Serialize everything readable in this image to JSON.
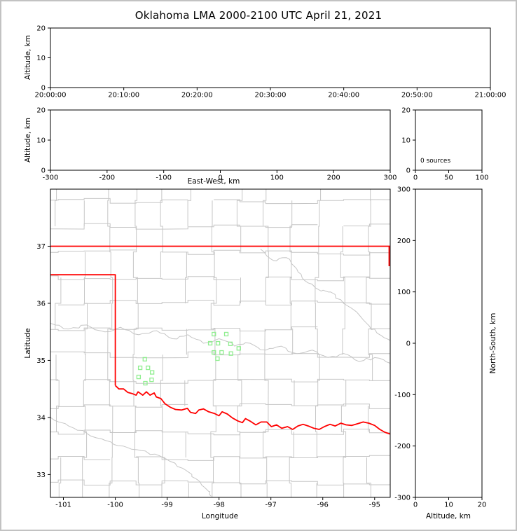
{
  "title": "Oklahoma LMA 2000-2100 UTC April 21, 2021",
  "frame_color": "#c2c2c2",
  "chart_data": {
    "type": "scatter",
    "title": "Oklahoma LMA 2000-2100 UTC April 21, 2021",
    "panels": {
      "time_height": {
        "ylabel": "Altitude, km",
        "xticks": [
          "20:00:00",
          "20:10:00",
          "20:20:00",
          "20:30:00",
          "20:40:00",
          "20:50:00",
          "21:00:00"
        ],
        "ylim": [
          0,
          20
        ],
        "yticks": [
          0,
          10,
          20
        ],
        "points": []
      },
      "ew_height": {
        "xlabel": "East-West, km",
        "ylabel": "Altitude, km",
        "xlim": [
          -300,
          300
        ],
        "xticks": [
          -300,
          -200,
          -100,
          0,
          100,
          200,
          300
        ],
        "ylim": [
          0,
          20
        ],
        "yticks": [
          0,
          10,
          20
        ],
        "points": []
      },
      "alt_histogram": {
        "xlim": [
          0,
          100
        ],
        "xticks": [
          0,
          50,
          100
        ],
        "ylim": [
          0,
          20
        ],
        "yticks": [
          0,
          10,
          20
        ],
        "annotation": "0 sources",
        "points": []
      },
      "ns_height": {
        "xlabel": "Altitude, km",
        "ylabel": "North-South, km",
        "xlim": [
          0,
          20
        ],
        "xticks": [
          0,
          10,
          20
        ],
        "ylim": [
          -300,
          300
        ],
        "yticks": [
          300,
          200,
          100,
          0,
          -100,
          -200,
          -300
        ],
        "points": []
      },
      "map": {
        "xlabel": "Longitude",
        "ylabel": "Latitude",
        "xlim": [
          -101.25,
          -94.7
        ],
        "xticks": [
          -101,
          -100,
          -99,
          -98,
          -97,
          -96,
          -95
        ],
        "ylim": [
          32.6,
          38.0
        ],
        "yticks": [
          37,
          36,
          35,
          34,
          33
        ],
        "county_color": "#c6c6c6",
        "state_color": "#ff0000",
        "station_color": "#90ee90",
        "stations": [
          [
            -99.43,
            35.02
          ],
          [
            -99.52,
            34.87
          ],
          [
            -99.37,
            34.87
          ],
          [
            -99.29,
            34.79
          ],
          [
            -99.55,
            34.71
          ],
          [
            -99.42,
            34.6
          ],
          [
            -99.3,
            34.66
          ],
          [
            -98.1,
            35.46
          ],
          [
            -97.86,
            35.46
          ],
          [
            -98.17,
            35.3
          ],
          [
            -98.02,
            35.3
          ],
          [
            -97.78,
            35.29
          ],
          [
            -97.62,
            35.21
          ],
          [
            -98.1,
            35.14
          ],
          [
            -97.95,
            35.14
          ],
          [
            -97.77,
            35.12
          ],
          [
            -98.03,
            35.03
          ]
        ],
        "state_lines": [
          [
            [
              -101.25,
              37.0
            ],
            [
              -94.7,
              37.0
            ]
          ],
          [
            [
              -94.72,
              37.0
            ],
            [
              -94.72,
              36.65
            ]
          ],
          [
            [
              -101.25,
              36.5
            ],
            [
              -100.0,
              36.5
            ],
            [
              -100.0,
              34.56
            ]
          ],
          [
            [
              -100.0,
              34.56
            ],
            [
              -99.93,
              34.5
            ],
            [
              -99.84,
              34.5
            ],
            [
              -99.76,
              34.44
            ],
            [
              -99.68,
              34.42
            ],
            [
              -99.6,
              34.39
            ],
            [
              -99.56,
              34.45
            ],
            [
              -99.47,
              34.39
            ],
            [
              -99.4,
              34.45
            ],
            [
              -99.33,
              34.39
            ],
            [
              -99.25,
              34.43
            ],
            [
              -99.21,
              34.36
            ],
            [
              -99.12,
              34.33
            ],
            [
              -99.04,
              34.24
            ],
            [
              -98.94,
              34.18
            ],
            [
              -98.84,
              34.14
            ],
            [
              -98.72,
              34.13
            ],
            [
              -98.61,
              34.16
            ],
            [
              -98.55,
              34.09
            ],
            [
              -98.45,
              34.07
            ],
            [
              -98.39,
              34.13
            ],
            [
              -98.3,
              34.15
            ],
            [
              -98.2,
              34.1
            ],
            [
              -98.09,
              34.07
            ],
            [
              -98.0,
              34.03
            ],
            [
              -97.94,
              34.1
            ],
            [
              -97.84,
              34.06
            ],
            [
              -97.74,
              33.99
            ],
            [
              -97.64,
              33.94
            ],
            [
              -97.55,
              33.91
            ],
            [
              -97.49,
              33.98
            ],
            [
              -97.39,
              33.93
            ],
            [
              -97.29,
              33.87
            ],
            [
              -97.19,
              33.92
            ],
            [
              -97.08,
              33.92
            ],
            [
              -96.99,
              33.84
            ],
            [
              -96.89,
              33.87
            ],
            [
              -96.79,
              33.81
            ],
            [
              -96.68,
              33.84
            ],
            [
              -96.58,
              33.79
            ],
            [
              -96.48,
              33.85
            ],
            [
              -96.38,
              33.88
            ],
            [
              -96.28,
              33.85
            ],
            [
              -96.17,
              33.81
            ],
            [
              -96.07,
              33.79
            ],
            [
              -95.97,
              33.84
            ],
            [
              -95.86,
              33.88
            ],
            [
              -95.76,
              33.85
            ],
            [
              -95.65,
              33.9
            ],
            [
              -95.55,
              33.87
            ],
            [
              -95.44,
              33.86
            ],
            [
              -95.33,
              33.89
            ],
            [
              -95.22,
              33.92
            ],
            [
              -95.11,
              33.9
            ],
            [
              -95.0,
              33.86
            ],
            [
              -94.9,
              33.79
            ],
            [
              -94.8,
              33.74
            ],
            [
              -94.7,
              33.71
            ]
          ]
        ],
        "rivers": [
          [
            [
              -101.25,
              35.65
            ],
            [
              -100.9,
              35.55
            ],
            [
              -100.55,
              35.62
            ],
            [
              -100.2,
              35.5
            ],
            [
              -99.9,
              35.58
            ],
            [
              -99.55,
              35.45
            ],
            [
              -99.2,
              35.52
            ],
            [
              -98.9,
              35.38
            ],
            [
              -98.6,
              35.45
            ],
            [
              -98.3,
              35.3
            ],
            [
              -98.0,
              35.38
            ],
            [
              -97.7,
              35.25
            ],
            [
              -97.4,
              35.3
            ],
            [
              -97.1,
              35.18
            ],
            [
              -96.8,
              35.25
            ],
            [
              -96.5,
              35.12
            ],
            [
              -96.2,
              35.18
            ],
            [
              -95.9,
              35.05
            ],
            [
              -95.6,
              35.12
            ],
            [
              -95.3,
              34.98
            ],
            [
              -95.0,
              35.05
            ],
            [
              -94.7,
              34.95
            ]
          ],
          [
            [
              -97.2,
              36.95
            ],
            [
              -96.95,
              36.75
            ],
            [
              -96.7,
              36.8
            ],
            [
              -96.5,
              36.6
            ],
            [
              -96.35,
              36.4
            ],
            [
              -96.1,
              36.25
            ],
            [
              -95.85,
              36.2
            ],
            [
              -95.6,
              36.0
            ],
            [
              -95.35,
              35.85
            ],
            [
              -95.1,
              35.6
            ],
            [
              -94.9,
              35.45
            ],
            [
              -94.7,
              35.35
            ]
          ],
          [
            [
              -101.25,
              34.0
            ],
            [
              -100.9,
              33.85
            ],
            [
              -100.55,
              33.72
            ],
            [
              -100.2,
              33.6
            ],
            [
              -99.85,
              33.5
            ],
            [
              -99.5,
              33.42
            ],
            [
              -99.15,
              33.33
            ],
            [
              -98.85,
              33.2
            ],
            [
              -98.6,
              33.05
            ],
            [
              -98.4,
              32.9
            ],
            [
              -98.25,
              32.75
            ],
            [
              -98.15,
              32.62
            ]
          ]
        ]
      }
    }
  }
}
